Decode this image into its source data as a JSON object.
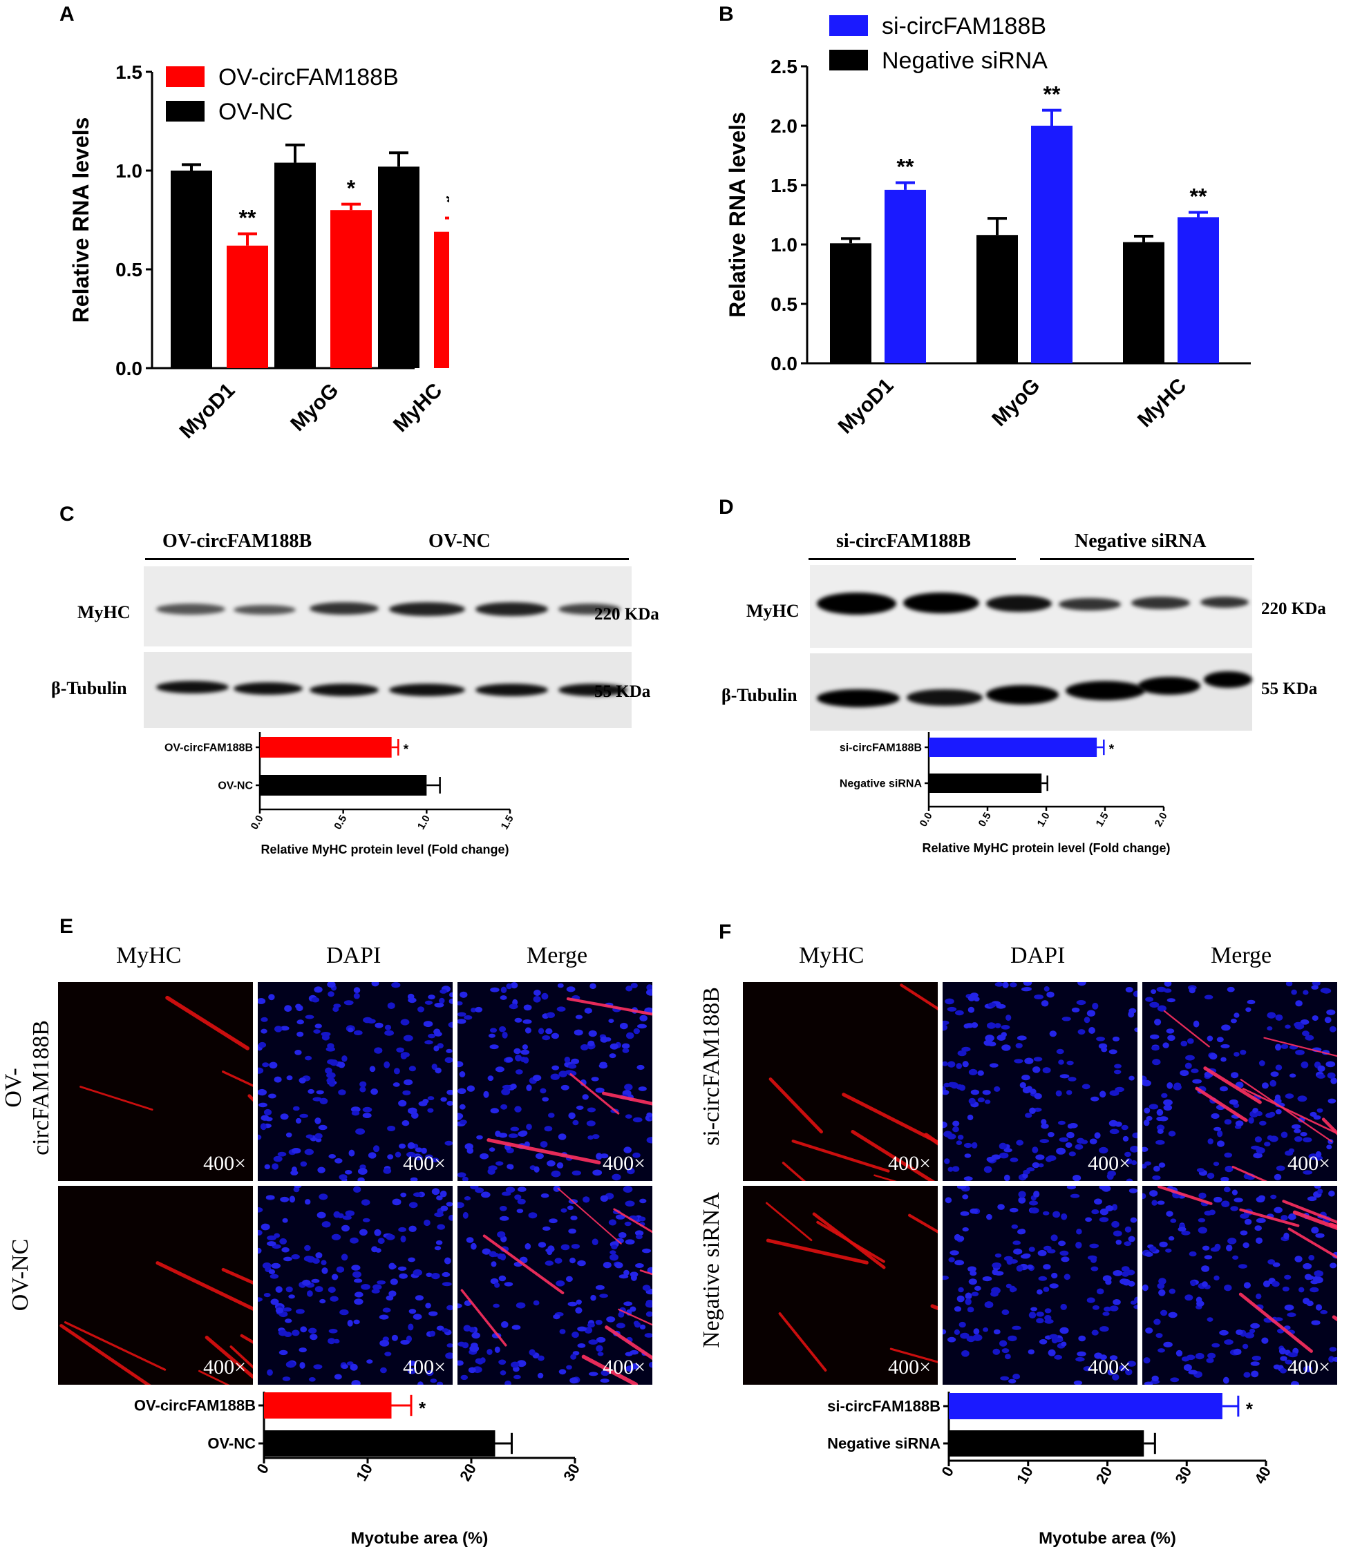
{
  "panel_labels": {
    "A": "A",
    "B": "B",
    "C": "C",
    "D": "D",
    "E": "E",
    "F": "F"
  },
  "colors": {
    "ov": "#ff0000",
    "si": "#1a1aff",
    "ctrl": "#000000"
  },
  "chart_data": [
    {
      "id": "A",
      "type": "bar",
      "ylabel": "Relative RNA levels",
      "ylim": [
        0,
        1.5
      ],
      "yticks": [
        "0.0",
        "0.5",
        "1.0",
        "1.5"
      ],
      "categories": [
        "MyoD1",
        "MyoG",
        "MyHC"
      ],
      "series": [
        {
          "name": "OV-NC",
          "color": "#000000",
          "values": [
            1.0,
            1.04,
            1.02
          ],
          "errors": [
            0.03,
            0.09,
            0.07
          ]
        },
        {
          "name": "OV-circFAM188B",
          "color": "#ff0000",
          "values": [
            0.62,
            0.8,
            0.69
          ],
          "errors": [
            0.06,
            0.03,
            0.07
          ],
          "sig": [
            "**",
            "*",
            "**"
          ]
        }
      ],
      "legend": [
        "OV-circFAM188B",
        "OV-NC"
      ]
    },
    {
      "id": "B",
      "type": "bar",
      "ylabel": "Relative RNA levels",
      "ylim": [
        0,
        2.5
      ],
      "yticks": [
        "0.0",
        "0.5",
        "1.0",
        "1.5",
        "2.0",
        "2.5"
      ],
      "categories": [
        "MyoD1",
        "MyoG",
        "MyHC"
      ],
      "series": [
        {
          "name": "Negative siRNA",
          "color": "#000000",
          "values": [
            1.01,
            1.08,
            1.02
          ],
          "errors": [
            0.04,
            0.14,
            0.05
          ]
        },
        {
          "name": "si-circFAM188B",
          "color": "#1a1aff",
          "values": [
            1.46,
            2.0,
            1.23
          ],
          "errors": [
            0.06,
            0.13,
            0.04
          ],
          "sig": [
            "**",
            "**",
            "**"
          ]
        }
      ],
      "legend": [
        "si-circFAM188B",
        "Negative siRNA"
      ]
    },
    {
      "id": "C",
      "type": "bar",
      "orientation": "horizontal",
      "xlabel": "Relative MyHC protein level (Fold change)",
      "xlim": [
        0,
        1.5
      ],
      "xticks": [
        "0.0",
        "0.5",
        "1.0",
        "1.5"
      ],
      "categories": [
        "OV-circFAM188B",
        "OV-NC"
      ],
      "values": [
        0.79,
        1.0
      ],
      "errors": [
        0.04,
        0.08
      ],
      "colors": [
        "#ff0000",
        "#000000"
      ],
      "sig": [
        "*",
        ""
      ]
    },
    {
      "id": "D",
      "type": "bar",
      "orientation": "horizontal",
      "xlabel": "Relative MyHC protein level (Fold change)",
      "xlim": [
        0,
        2.0
      ],
      "xticks": [
        "0.0",
        "0.5",
        "1.0",
        "1.5",
        "2.0"
      ],
      "categories": [
        "si-circFAM188B",
        "Negative siRNA"
      ],
      "values": [
        1.43,
        0.96
      ],
      "errors": [
        0.06,
        0.05
      ],
      "colors": [
        "#1a1aff",
        "#000000"
      ],
      "sig": [
        "*",
        ""
      ]
    },
    {
      "id": "E",
      "type": "bar",
      "orientation": "horizontal",
      "xlabel": "Myotube area (%)",
      "xlim": [
        0,
        30
      ],
      "xticks": [
        "0",
        "10",
        "20",
        "30"
      ],
      "categories": [
        "OV-circFAM188B",
        "OV-NC"
      ],
      "values": [
        12.3,
        22.3
      ],
      "errors": [
        1.9,
        1.6
      ],
      "colors": [
        "#ff0000",
        "#000000"
      ],
      "sig": [
        "*",
        ""
      ]
    },
    {
      "id": "F",
      "type": "bar",
      "orientation": "horizontal",
      "xlabel": "Myotube area (%)",
      "xlim": [
        0,
        40
      ],
      "xticks": [
        "0",
        "10",
        "20",
        "30",
        "40"
      ],
      "categories": [
        "si-circFAM188B",
        "Negative siRNA"
      ],
      "values": [
        34.5,
        24.6
      ],
      "errors": [
        2.0,
        1.4
      ],
      "colors": [
        "#1a1aff",
        "#000000"
      ],
      "sig": [
        "*",
        ""
      ]
    }
  ],
  "western": {
    "C": {
      "group1": "OV-circFAM188B",
      "group2": "OV-NC",
      "row1": "MyHC",
      "row2": "β-Tubulin",
      "size1": "220 KDa",
      "size2": "55 KDa"
    },
    "D": {
      "group1": "si-circFAM188B",
      "group2": "Negative siRNA",
      "row1": "MyHC",
      "row2": "β-Tubulin",
      "size1": "220 KDa",
      "size2": "55 KDa"
    }
  },
  "micro": {
    "E": {
      "cols": [
        "MyHC",
        "DAPI",
        "Merge"
      ],
      "rows": [
        "OV-\ncircFAM188B",
        "OV-NC"
      ],
      "mag": "400×"
    },
    "F": {
      "cols": [
        "MyHC",
        "DAPI",
        "Merge"
      ],
      "rows": [
        "si-circFAM188B",
        "Negative siRNA"
      ],
      "mag": "400×"
    }
  }
}
